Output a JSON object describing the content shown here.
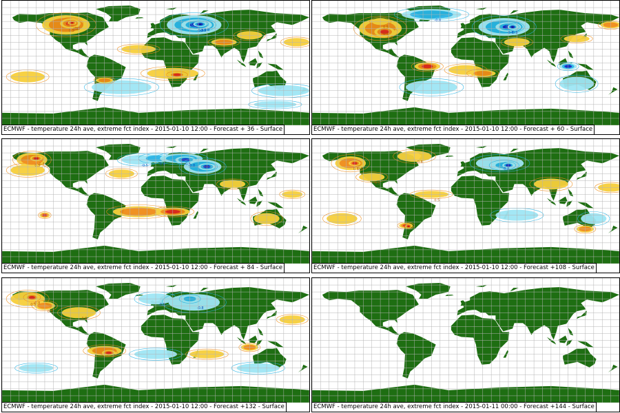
{
  "panels": [
    {
      "caption": "ECMWF - temperature 24h ave, extreme fct index - 2015-01-10 12:00 - Forecast + 36 - Surface",
      "has_anomalies": true
    },
    {
      "caption": "ECMWF - temperature 24h ave, extreme fct index - 2015-01-10 12:00 - Forecast + 60 - Surface",
      "has_anomalies": true
    },
    {
      "caption": "ECMWF - temperature 24h ave, extreme fct index - 2015-01-10 12:00 - Forecast + 84 - Surface",
      "has_anomalies": true
    },
    {
      "caption": "ECMWF - temperature 24h ave, extreme fct index - 2015-01-10 12:00 - Forecast +108 - Surface",
      "has_anomalies": true
    },
    {
      "caption": "ECMWF - temperature 24h ave, extreme fct index - 2015-01-10 12:00 - Forecast +132 - Surface",
      "has_anomalies": true
    },
    {
      "caption": "ECMWF - temperature 24h ave, extreme fct index - 2015-01-11 00:00 - Forecast +144 - Surface",
      "has_anomalies": false
    }
  ],
  "colors": {
    "land": "#1e6e12",
    "grid": "#b4b4b4",
    "warm_light": "#f7cf3c",
    "warm_mid": "#f08c18",
    "warm_strong": "#e0281e",
    "warm_extreme": "#8c0a0a",
    "cold_light": "#9fe6f5",
    "cold_mid": "#28b4e6",
    "cold_strong": "#1428c8",
    "cold_extreme": "#0a0a6e"
  },
  "contour_labels": [
    "0.5",
    "0.8",
    "-0.5",
    "-0.8"
  ]
}
